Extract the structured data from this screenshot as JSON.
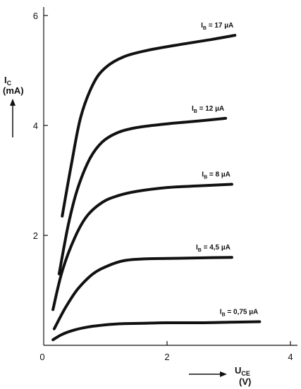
{
  "chart_data": {
    "type": "line",
    "y_axis": {
      "symbol": "I",
      "subscript": "C",
      "unit": "(mA)",
      "ticks": [
        "6",
        "4",
        "2"
      ],
      "tick_values": [
        6,
        4,
        2
      ],
      "ylim": [
        0,
        6.2
      ]
    },
    "x_axis": {
      "symbol": "U",
      "subscript": "CE",
      "unit": "(V)",
      "ticks": [
        "0",
        "2",
        "4"
      ],
      "tick_values": [
        0,
        2,
        4
      ],
      "xlim": [
        0,
        4.1
      ]
    },
    "grid": false,
    "legend": "inline labels at curve ends",
    "series": [
      {
        "label_prefix": "I",
        "label_subscript": "B",
        "label_value": " = 17 µA",
        "x": [
          0.3,
          0.45,
          0.6,
          0.8,
          1.0,
          1.3,
          1.7,
          2.2,
          2.7,
          3.1
        ],
        "y": [
          2.35,
          3.3,
          4.15,
          4.75,
          5.05,
          5.25,
          5.37,
          5.47,
          5.56,
          5.64
        ]
      },
      {
        "label_prefix": "I",
        "label_subscript": "B",
        "label_value": " = 12 µA",
        "x": [
          0.25,
          0.4,
          0.55,
          0.75,
          0.95,
          1.2,
          1.5,
          2.0,
          2.5,
          2.95
        ],
        "y": [
          1.3,
          2.2,
          2.85,
          3.4,
          3.7,
          3.87,
          3.96,
          4.03,
          4.08,
          4.13
        ]
      },
      {
        "label_prefix": "I",
        "label_subscript": "B",
        "label_value": " = 8 µA",
        "x": [
          0.15,
          0.3,
          0.5,
          0.7,
          0.95,
          1.2,
          1.5,
          2.0,
          2.5,
          3.05
        ],
        "y": [
          0.65,
          1.35,
          1.95,
          2.35,
          2.6,
          2.72,
          2.8,
          2.87,
          2.9,
          2.93
        ]
      },
      {
        "label_prefix": "I",
        "label_subscript": "B",
        "label_value": " = 4,5 µA",
        "x": [
          0.17,
          0.35,
          0.55,
          0.8,
          1.05,
          1.3,
          1.6,
          2.0,
          2.5,
          3.05
        ],
        "y": [
          0.3,
          0.68,
          1.02,
          1.3,
          1.45,
          1.54,
          1.57,
          1.58,
          1.59,
          1.6
        ]
      },
      {
        "label_prefix": "I",
        "label_subscript": "B",
        "label_value": " = 0,75 µA",
        "x": [
          0.15,
          0.3,
          0.5,
          0.7,
          0.9,
          1.2,
          1.6,
          2.0,
          2.5,
          3.0,
          3.5
        ],
        "y": [
          0.1,
          0.2,
          0.28,
          0.33,
          0.36,
          0.39,
          0.4,
          0.41,
          0.41,
          0.42,
          0.43
        ]
      }
    ]
  }
}
